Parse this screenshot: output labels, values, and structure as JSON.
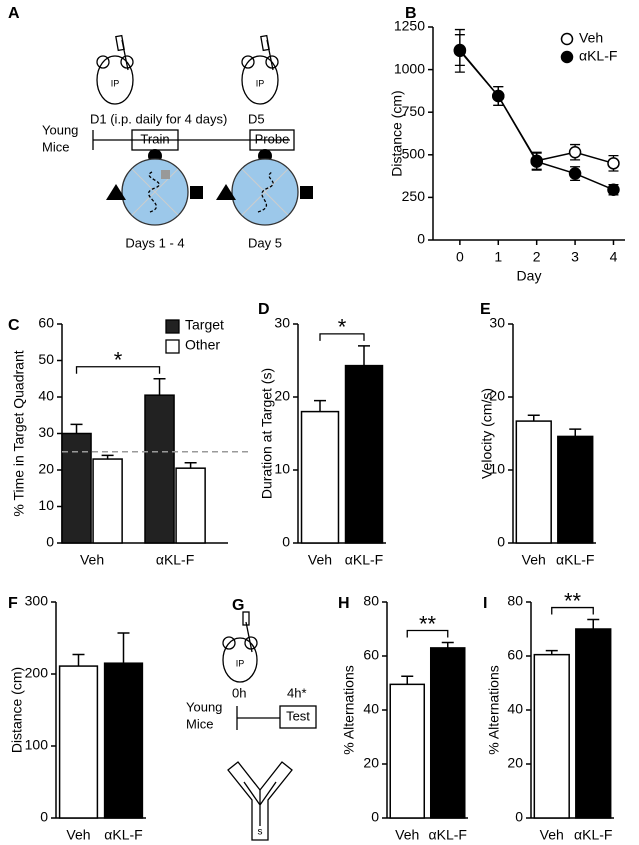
{
  "chart_data": [
    {
      "type": "line",
      "label": "B",
      "x_label": "Day",
      "y_label": "Distance (cm)",
      "x": [
        0,
        1,
        2,
        3,
        4
      ],
      "xlim": [
        -0.7,
        4.3
      ],
      "xticks": [
        0,
        1,
        2,
        3,
        4
      ],
      "ylim": [
        0,
        1250
      ],
      "yticks": [
        0,
        250,
        500,
        750,
        1000,
        1250
      ],
      "legend": "upper right",
      "series": [
        {
          "name": "Veh",
          "color": "#ffffff",
          "values": [
            1110,
            845,
            465,
            515,
            450
          ],
          "errors": [
            125,
            55,
            50,
            45,
            45
          ]
        },
        {
          "name": "αKL-F",
          "color": "#000000",
          "values": [
            1115,
            845,
            460,
            390,
            295
          ],
          "errors": [
            90,
            55,
            50,
            40,
            30
          ]
        }
      ]
    },
    {
      "type": "bar",
      "label": "C",
      "y_label": "% Time in Target Quadrant",
      "categories": [
        "Veh",
        "αKL-F"
      ],
      "ylim": [
        0,
        60
      ],
      "yticks": [
        0,
        10,
        20,
        30,
        40,
        50,
        60
      ],
      "legend": "upper right",
      "reference_line": 25,
      "annotation": "*",
      "series": [
        {
          "name": "Target",
          "color": "#222222",
          "values": [
            30,
            40.5
          ],
          "errors": [
            2.5,
            4.5
          ]
        },
        {
          "name": "Other",
          "color": "#ffffff",
          "values": [
            23,
            20.5
          ],
          "errors": [
            1,
            1.5
          ]
        }
      ]
    },
    {
      "type": "bar",
      "label": "D",
      "y_label": "Duration at Target (s)",
      "categories": [
        "Veh",
        "αKL-F"
      ],
      "ylim": [
        0,
        30
      ],
      "yticks": [
        0,
        10,
        20,
        30
      ],
      "annotation": "*",
      "colors": [
        "#ffffff",
        "#000000"
      ],
      "values": [
        18,
        24.3
      ],
      "errors": [
        1.5,
        2.7
      ]
    },
    {
      "type": "bar",
      "label": "E",
      "y_label": "Velocity (cm/s)",
      "categories": [
        "Veh",
        "αKL-F"
      ],
      "ylim": [
        0,
        30
      ],
      "yticks": [
        0,
        10,
        20,
        30
      ],
      "colors": [
        "#ffffff",
        "#000000"
      ],
      "values": [
        16.7,
        14.6
      ],
      "errors": [
        0.8,
        1
      ]
    },
    {
      "type": "bar",
      "label": "F",
      "y_label": "Distance (cm)",
      "categories": [
        "Veh",
        "αKL-F"
      ],
      "ylim": [
        0,
        300
      ],
      "yticks": [
        0,
        100,
        200,
        300
      ],
      "colors": [
        "#ffffff",
        "#000000"
      ],
      "values": [
        211,
        215
      ],
      "errors": [
        16,
        42
      ]
    },
    {
      "type": "bar",
      "label": "H",
      "y_label": "% Alternations",
      "categories": [
        "Veh",
        "αKL-F"
      ],
      "ylim": [
        0,
        80
      ],
      "yticks": [
        0,
        20,
        40,
        60,
        80
      ],
      "annotation": "**",
      "colors": [
        "#ffffff",
        "#000000"
      ],
      "values": [
        49.5,
        63
      ],
      "errors": [
        3,
        2
      ]
    },
    {
      "type": "bar",
      "label": "I",
      "y_label": "% Alternations",
      "categories": [
        "Veh",
        "αKL-F"
      ],
      "ylim": [
        0,
        80
      ],
      "yticks": [
        0,
        20,
        40,
        60,
        80
      ],
      "annotation": "**",
      "colors": [
        "#ffffff",
        "#000000"
      ],
      "values": [
        60.5,
        70
      ],
      "errors": [
        1.5,
        3.5
      ]
    }
  ],
  "diagrams": {
    "A": {
      "label": "A",
      "injection": "IP",
      "injection_2": "IP",
      "start": "D1 (i.p. daily for 4 days)",
      "probe_day": "D5",
      "group": [
        "Young",
        "Mice"
      ],
      "train": "Train",
      "probe": "Probe",
      "train_days": "Days 1 - 4",
      "probe_days": "Day 5"
    },
    "G": {
      "label": "G",
      "injection": "IP",
      "t0": "0h",
      "t1": "4h*",
      "group": [
        "Young",
        "Mice"
      ],
      "test": "Test",
      "start": "s"
    }
  }
}
